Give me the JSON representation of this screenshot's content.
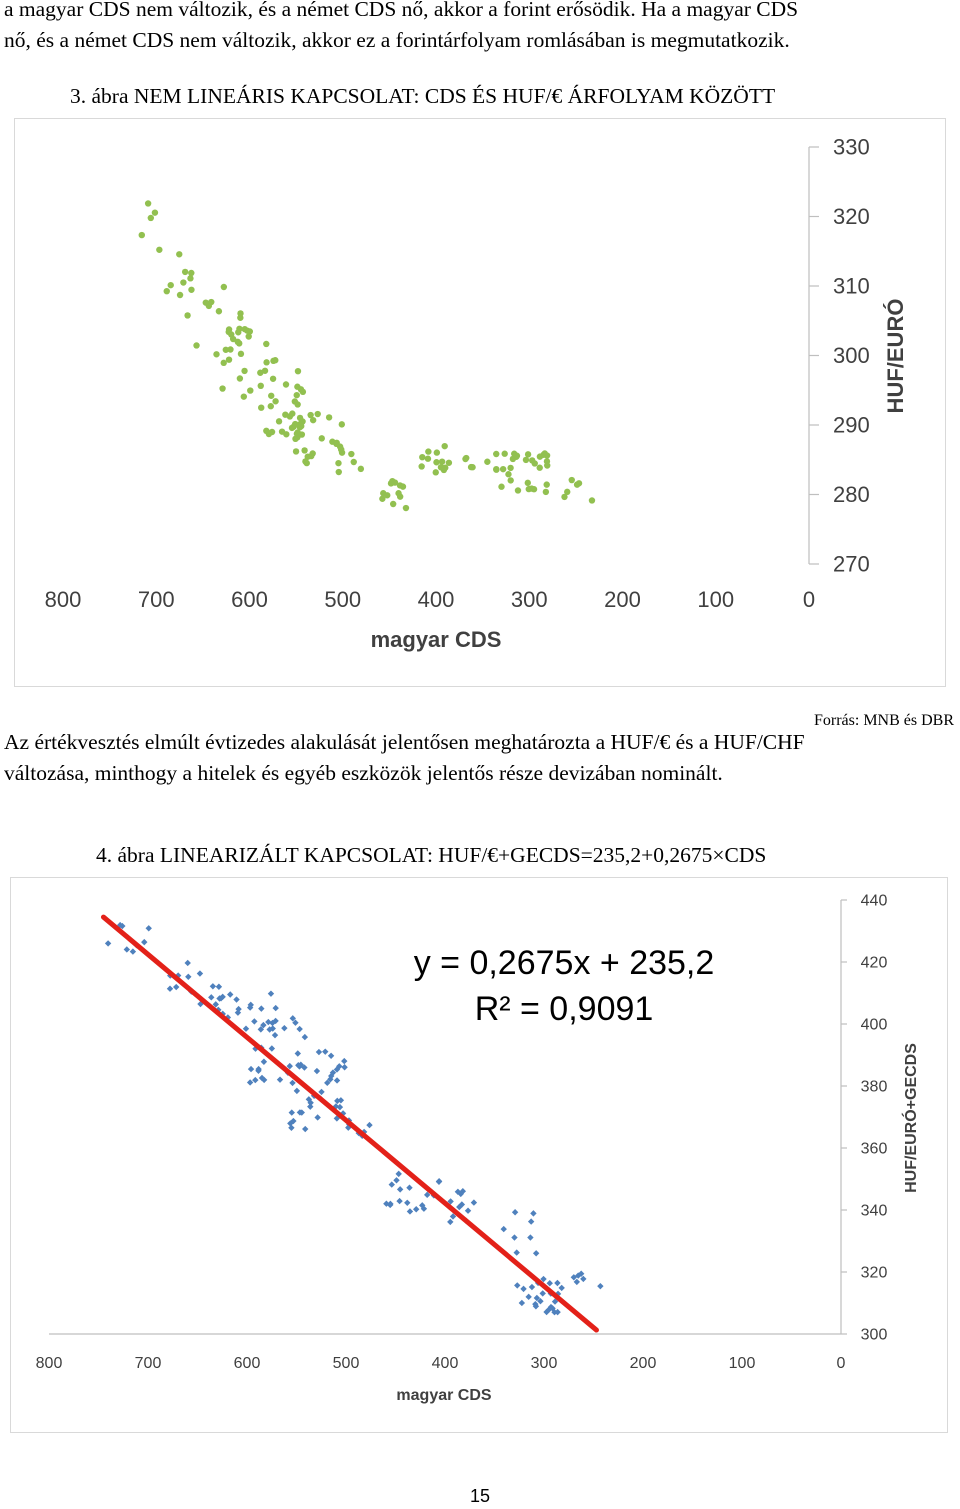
{
  "intro_text": [
    "a magyar CDS nem változik, és a német CDS nő, akkor a forint erősödik. Ha a magyar CDS",
    "nő, és a német CDS nem változik, akkor ez a forintárfolyam romlásában is megmutatkozik."
  ],
  "figure3_caption": "3.  ábra NEM LINEÁRIS KAPCSOLAT: CDS ÉS HUF/€ ÁRFOLYAM KÖZÖTT",
  "source_note": "Forrás: MNB és DBR",
  "middle_text": [
    "Az értékvesztés elmúlt évtizedes alakulását jelentősen meghatározta a HUF/€ és a HUF/CHF",
    "változása, minthogy a hitelek és egyéb eszközök jelentős része devizában nominált."
  ],
  "figure4_caption": "4.  ábra LINEARIZÁLT KAPCSOLAT: HUF/€+GECDS=235,2+0,2675×CDS",
  "page_number": "15",
  "chart_data": [
    {
      "type": "scatter",
      "xlabel": "magyar CDS",
      "ylabel": "HUF/EURÓ",
      "x_reversed": true,
      "y_axis_position": "right",
      "xlim": [
        0,
        800
      ],
      "ylim": [
        270,
        330
      ],
      "x_ticks": [
        "800",
        "700",
        "600",
        "500",
        "400",
        "300",
        "200",
        "100",
        "0"
      ],
      "y_ticks": [
        "270",
        "280",
        "290",
        "300",
        "310",
        "320",
        "330"
      ],
      "marker": "circle",
      "color": "#92c050",
      "clusters": [
        {
          "x": [
            690,
            720
          ],
          "y": [
            315,
            322
          ],
          "n": 5
        },
        {
          "x": [
            650,
            690
          ],
          "y": [
            305,
            315
          ],
          "n": 10
        },
        {
          "x": [
            600,
            660
          ],
          "y": [
            300,
            310
          ],
          "n": 16
        },
        {
          "x": [
            570,
            630
          ],
          "y": [
            294,
            304
          ],
          "n": 22
        },
        {
          "x": [
            540,
            590
          ],
          "y": [
            288,
            298
          ],
          "n": 26
        },
        {
          "x": [
            500,
            560
          ],
          "y": [
            284,
            292
          ],
          "n": 26
        },
        {
          "x": [
            470,
            510
          ],
          "y": [
            282,
            288
          ],
          "n": 7
        },
        {
          "x": [
            430,
            460
          ],
          "y": [
            278,
            282
          ],
          "n": 12
        },
        {
          "x": [
            380,
            420
          ],
          "y": [
            283,
            287
          ],
          "n": 14
        },
        {
          "x": [
            330,
            370
          ],
          "y": [
            283,
            286
          ],
          "n": 8
        },
        {
          "x": [
            280,
            330
          ],
          "y": [
            280,
            286
          ],
          "n": 28
        },
        {
          "x": [
            230,
            270
          ],
          "y": [
            279,
            283
          ],
          "n": 6
        }
      ]
    },
    {
      "type": "scatter",
      "xlabel": "magyar CDS",
      "ylabel": "HUF/EURÓ+GECDS",
      "x_reversed": true,
      "y_axis_position": "right",
      "xlim": [
        0,
        800
      ],
      "ylim": [
        300,
        440
      ],
      "x_ticks": [
        "800",
        "700",
        "600",
        "500",
        "400",
        "300",
        "200",
        "100",
        "0"
      ],
      "y_ticks": [
        "300",
        "320",
        "340",
        "360",
        "380",
        "400",
        "420",
        "440"
      ],
      "marker": "diamond",
      "color": "#4f81bd",
      "trendline": {
        "slope": 0.2675,
        "intercept": 235.2,
        "x_range": [
          247,
          745
        ],
        "color": "#e32119"
      },
      "equation": "y = 0,2675x + 235,2",
      "r_squared": "R² = 0,9091",
      "clusters": [
        {
          "x": [
            690,
            745
          ],
          "y": [
            420,
            432
          ],
          "n": 8
        },
        {
          "x": [
            620,
            680
          ],
          "y": [
            405,
            420
          ],
          "n": 14
        },
        {
          "x": [
            570,
            630
          ],
          "y": [
            395,
            412
          ],
          "n": 20
        },
        {
          "x": [
            540,
            600
          ],
          "y": [
            378,
            402
          ],
          "n": 28
        },
        {
          "x": [
            500,
            560
          ],
          "y": [
            365,
            392
          ],
          "n": 34
        },
        {
          "x": [
            470,
            510
          ],
          "y": [
            363,
            376
          ],
          "n": 10
        },
        {
          "x": [
            420,
            460
          ],
          "y": [
            338,
            352
          ],
          "n": 14
        },
        {
          "x": [
            370,
            420
          ],
          "y": [
            336,
            350
          ],
          "n": 16
        },
        {
          "x": [
            300,
            360
          ],
          "y": [
            326,
            340
          ],
          "n": 8
        },
        {
          "x": [
            280,
            330
          ],
          "y": [
            307,
            318
          ],
          "n": 24
        },
        {
          "x": [
            240,
            270
          ],
          "y": [
            310,
            320
          ],
          "n": 6
        }
      ]
    }
  ]
}
